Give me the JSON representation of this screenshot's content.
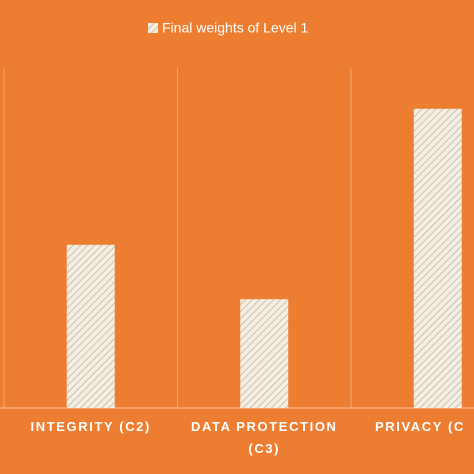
{
  "chart_data": {
    "type": "bar",
    "categories": [
      "INTEGRITY (C2)",
      "DATA PROTECTION (C3)",
      "PRIVACY (C"
    ],
    "series": [
      {
        "name": "Final weights of Level 1",
        "color": "#f5efe2",
        "values": [
          0.48,
          0.32,
          0.88
        ]
      }
    ],
    "ylim": [
      0,
      1
    ],
    "background": "#ED7D31"
  }
}
